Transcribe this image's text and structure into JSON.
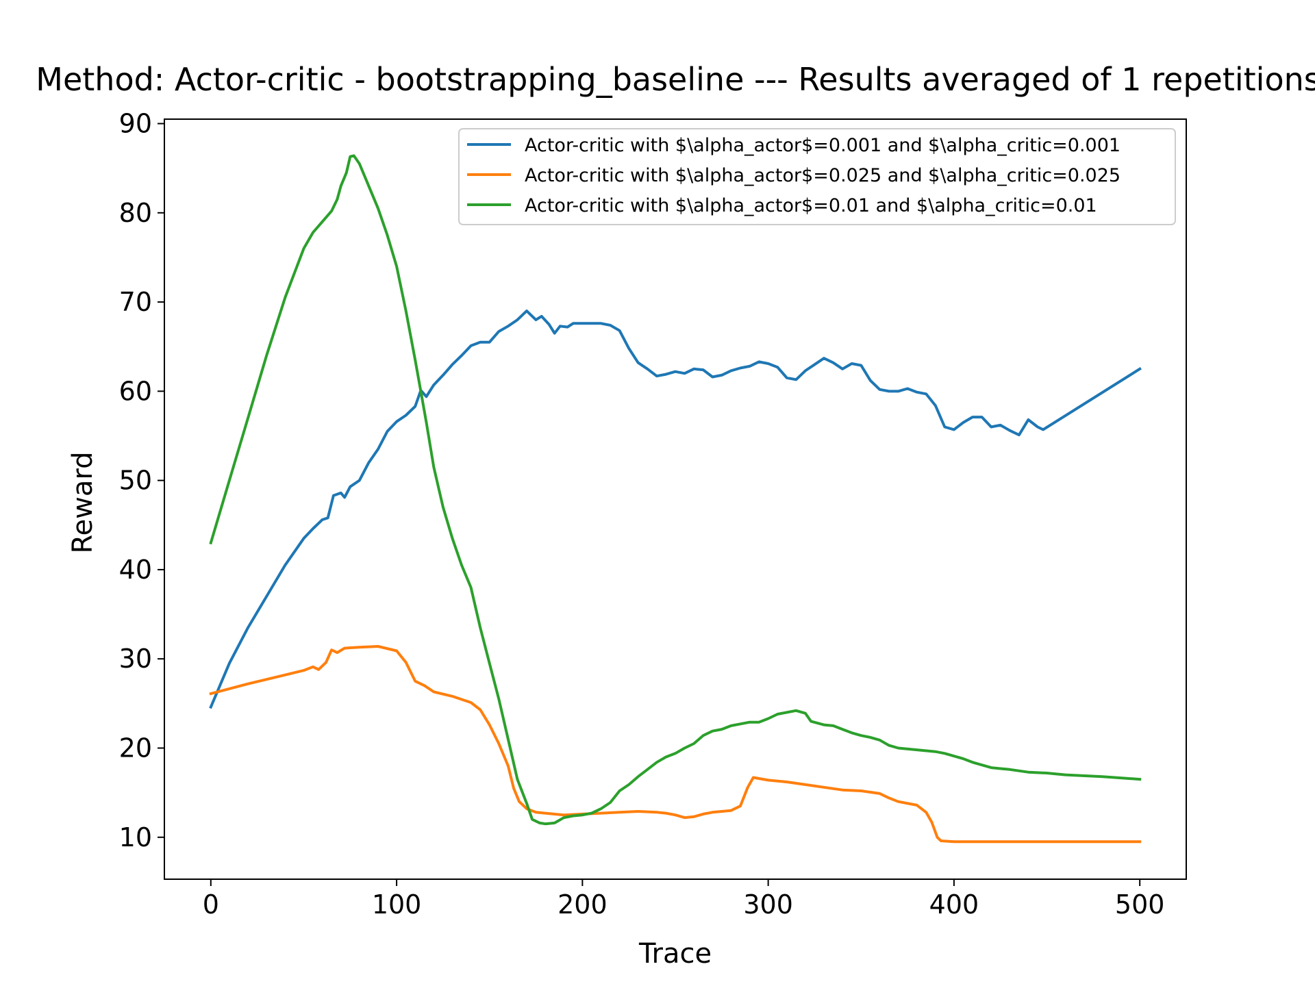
{
  "chart_data": {
    "type": "line",
    "title": "Method: Actor-critic - bootstrapping_baseline --- Results averaged of 1 repetitions",
    "xlabel": "Trace",
    "ylabel": "Reward",
    "xlim": [
      -25,
      525
    ],
    "ylim": [
      5.3,
      90.5
    ],
    "xticks": [
      0,
      100,
      200,
      300,
      400,
      500
    ],
    "yticks": [
      10,
      20,
      30,
      40,
      50,
      60,
      70,
      80,
      90
    ],
    "grid": false,
    "legend_position": "upper right",
    "series": [
      {
        "name": "Actor-critic with $\\alpha_actor$=0.001 and $\\alpha_critic=0.001",
        "color": "#1f77b4",
        "points": [
          [
            0,
            24.6
          ],
          [
            10,
            29.5
          ],
          [
            20,
            33.5
          ],
          [
            30,
            37.0
          ],
          [
            40,
            40.5
          ],
          [
            50,
            43.5
          ],
          [
            55,
            44.6
          ],
          [
            60,
            45.6
          ],
          [
            63,
            45.8
          ],
          [
            66,
            48.3
          ],
          [
            70,
            48.6
          ],
          [
            72,
            48.1
          ],
          [
            75,
            49.3
          ],
          [
            80,
            50.0
          ],
          [
            85,
            52.0
          ],
          [
            90,
            53.5
          ],
          [
            95,
            55.5
          ],
          [
            100,
            56.6
          ],
          [
            105,
            57.3
          ],
          [
            110,
            58.3
          ],
          [
            113,
            60.1
          ],
          [
            116,
            59.4
          ],
          [
            120,
            60.7
          ],
          [
            125,
            61.8
          ],
          [
            130,
            63.0
          ],
          [
            135,
            64.0
          ],
          [
            140,
            65.1
          ],
          [
            145,
            65.5
          ],
          [
            150,
            65.5
          ],
          [
            155,
            66.7
          ],
          [
            160,
            67.3
          ],
          [
            165,
            68.0
          ],
          [
            170,
            69.0
          ],
          [
            172,
            68.6
          ],
          [
            175,
            68.0
          ],
          [
            178,
            68.4
          ],
          [
            182,
            67.5
          ],
          [
            185,
            66.5
          ],
          [
            188,
            67.3
          ],
          [
            192,
            67.2
          ],
          [
            195,
            67.6
          ],
          [
            200,
            67.6
          ],
          [
            205,
            67.6
          ],
          [
            210,
            67.6
          ],
          [
            215,
            67.4
          ],
          [
            220,
            66.8
          ],
          [
            225,
            64.8
          ],
          [
            230,
            63.2
          ],
          [
            235,
            62.5
          ],
          [
            240,
            61.7
          ],
          [
            245,
            61.9
          ],
          [
            250,
            62.2
          ],
          [
            255,
            62.0
          ],
          [
            260,
            62.5
          ],
          [
            265,
            62.4
          ],
          [
            270,
            61.6
          ],
          [
            275,
            61.8
          ],
          [
            280,
            62.3
          ],
          [
            285,
            62.6
          ],
          [
            290,
            62.8
          ],
          [
            295,
            63.3
          ],
          [
            300,
            63.1
          ],
          [
            305,
            62.7
          ],
          [
            310,
            61.5
          ],
          [
            315,
            61.3
          ],
          [
            320,
            62.3
          ],
          [
            325,
            63.0
          ],
          [
            330,
            63.7
          ],
          [
            335,
            63.2
          ],
          [
            340,
            62.5
          ],
          [
            345,
            63.1
          ],
          [
            350,
            62.9
          ],
          [
            355,
            61.2
          ],
          [
            360,
            60.2
          ],
          [
            365,
            60.0
          ],
          [
            370,
            60.0
          ],
          [
            375,
            60.3
          ],
          [
            380,
            59.9
          ],
          [
            385,
            59.7
          ],
          [
            390,
            58.4
          ],
          [
            395,
            56.0
          ],
          [
            400,
            55.7
          ],
          [
            405,
            56.5
          ],
          [
            410,
            57.1
          ],
          [
            415,
            57.1
          ],
          [
            420,
            56.0
          ],
          [
            425,
            56.2
          ],
          [
            430,
            55.6
          ],
          [
            435,
            55.1
          ],
          [
            440,
            56.8
          ],
          [
            445,
            56.0
          ],
          [
            448,
            55.7
          ],
          [
            500,
            62.5
          ]
        ]
      },
      {
        "name": "Actor-critic with $\\alpha_actor$=0.025 and $\\alpha_critic=0.025",
        "color": "#ff7f0e",
        "points": [
          [
            0,
            26.1
          ],
          [
            20,
            27.2
          ],
          [
            40,
            28.2
          ],
          [
            50,
            28.7
          ],
          [
            55,
            29.1
          ],
          [
            58,
            28.8
          ],
          [
            62,
            29.6
          ],
          [
            65,
            31.0
          ],
          [
            68,
            30.7
          ],
          [
            72,
            31.2
          ],
          [
            80,
            31.3
          ],
          [
            90,
            31.4
          ],
          [
            100,
            30.9
          ],
          [
            105,
            29.6
          ],
          [
            110,
            27.5
          ],
          [
            115,
            27.0
          ],
          [
            120,
            26.3
          ],
          [
            130,
            25.8
          ],
          [
            140,
            25.1
          ],
          [
            145,
            24.3
          ],
          [
            150,
            22.6
          ],
          [
            155,
            20.5
          ],
          [
            160,
            18.0
          ],
          [
            163,
            15.5
          ],
          [
            166,
            14.0
          ],
          [
            170,
            13.2
          ],
          [
            175,
            12.8
          ],
          [
            180,
            12.7
          ],
          [
            190,
            12.5
          ],
          [
            200,
            12.6
          ],
          [
            210,
            12.7
          ],
          [
            220,
            12.8
          ],
          [
            230,
            12.9
          ],
          [
            240,
            12.8
          ],
          [
            245,
            12.7
          ],
          [
            250,
            12.5
          ],
          [
            255,
            12.2
          ],
          [
            260,
            12.3
          ],
          [
            265,
            12.6
          ],
          [
            270,
            12.8
          ],
          [
            280,
            13.0
          ],
          [
            285,
            13.5
          ],
          [
            289,
            15.6
          ],
          [
            292,
            16.7
          ],
          [
            300,
            16.4
          ],
          [
            310,
            16.2
          ],
          [
            320,
            15.9
          ],
          [
            330,
            15.6
          ],
          [
            340,
            15.3
          ],
          [
            350,
            15.2
          ],
          [
            360,
            14.9
          ],
          [
            365,
            14.4
          ],
          [
            370,
            14.0
          ],
          [
            380,
            13.6
          ],
          [
            385,
            12.8
          ],
          [
            388,
            11.7
          ],
          [
            391,
            10.0
          ],
          [
            393,
            9.6
          ],
          [
            400,
            9.5
          ],
          [
            420,
            9.5
          ],
          [
            440,
            9.5
          ],
          [
            460,
            9.5
          ],
          [
            500,
            9.5
          ]
        ]
      },
      {
        "name": "Actor-critic with $\\alpha_actor$=0.01 and $\\alpha_critic=0.01",
        "color": "#2ca02c",
        "points": [
          [
            0,
            43.0
          ],
          [
            10,
            50.0
          ],
          [
            20,
            57.0
          ],
          [
            30,
            64.0
          ],
          [
            40,
            70.5
          ],
          [
            50,
            76.0
          ],
          [
            55,
            77.8
          ],
          [
            60,
            79.0
          ],
          [
            65,
            80.2
          ],
          [
            68,
            81.5
          ],
          [
            70,
            83.0
          ],
          [
            73,
            84.5
          ],
          [
            75,
            86.3
          ],
          [
            77,
            86.4
          ],
          [
            80,
            85.5
          ],
          [
            85,
            83.0
          ],
          [
            90,
            80.5
          ],
          [
            95,
            77.5
          ],
          [
            100,
            74.0
          ],
          [
            105,
            69.0
          ],
          [
            110,
            63.5
          ],
          [
            113,
            60.0
          ],
          [
            116,
            56.5
          ],
          [
            120,
            51.5
          ],
          [
            125,
            47.0
          ],
          [
            130,
            43.5
          ],
          [
            135,
            40.5
          ],
          [
            140,
            38.0
          ],
          [
            145,
            33.5
          ],
          [
            150,
            29.5
          ],
          [
            155,
            25.5
          ],
          [
            160,
            21.0
          ],
          [
            165,
            16.5
          ],
          [
            170,
            13.8
          ],
          [
            173,
            12.0
          ],
          [
            177,
            11.6
          ],
          [
            180,
            11.5
          ],
          [
            185,
            11.6
          ],
          [
            190,
            12.2
          ],
          [
            195,
            12.4
          ],
          [
            200,
            12.5
          ],
          [
            205,
            12.7
          ],
          [
            210,
            13.2
          ],
          [
            215,
            13.9
          ],
          [
            220,
            15.2
          ],
          [
            225,
            15.9
          ],
          [
            230,
            16.8
          ],
          [
            235,
            17.6
          ],
          [
            240,
            18.4
          ],
          [
            245,
            19.0
          ],
          [
            250,
            19.4
          ],
          [
            255,
            20.0
          ],
          [
            260,
            20.5
          ],
          [
            265,
            21.4
          ],
          [
            270,
            21.9
          ],
          [
            275,
            22.1
          ],
          [
            280,
            22.5
          ],
          [
            285,
            22.7
          ],
          [
            290,
            22.9
          ],
          [
            295,
            22.9
          ],
          [
            300,
            23.3
          ],
          [
            305,
            23.8
          ],
          [
            310,
            24.0
          ],
          [
            315,
            24.2
          ],
          [
            320,
            23.9
          ],
          [
            323,
            23.0
          ],
          [
            330,
            22.6
          ],
          [
            335,
            22.5
          ],
          [
            340,
            22.1
          ],
          [
            345,
            21.7
          ],
          [
            350,
            21.4
          ],
          [
            355,
            21.2
          ],
          [
            360,
            20.9
          ],
          [
            365,
            20.3
          ],
          [
            370,
            20.0
          ],
          [
            380,
            19.8
          ],
          [
            390,
            19.6
          ],
          [
            395,
            19.4
          ],
          [
            400,
            19.1
          ],
          [
            405,
            18.8
          ],
          [
            410,
            18.4
          ],
          [
            415,
            18.1
          ],
          [
            420,
            17.8
          ],
          [
            425,
            17.7
          ],
          [
            430,
            17.6
          ],
          [
            440,
            17.3
          ],
          [
            450,
            17.2
          ],
          [
            460,
            17.0
          ],
          [
            480,
            16.8
          ],
          [
            500,
            16.5
          ]
        ]
      }
    ]
  }
}
